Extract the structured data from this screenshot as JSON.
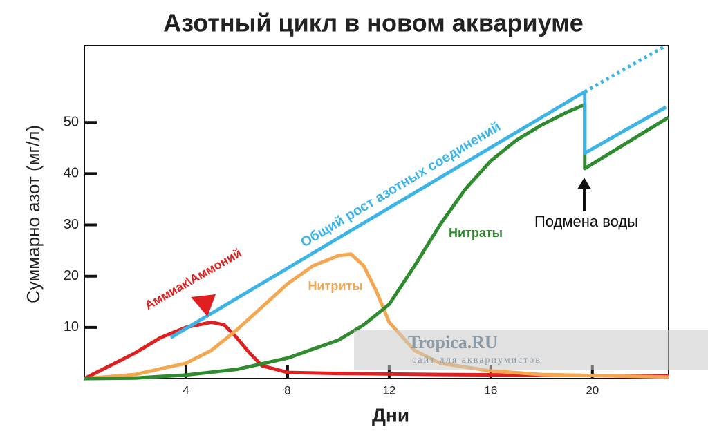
{
  "chart_data": {
    "type": "line",
    "title": "Азотный цикл в новом аквариуме",
    "xlabel": "Дни",
    "ylabel": "Суммарно азот (мг/л)",
    "xlim": [
      0,
      23
    ],
    "ylim": [
      0,
      65
    ],
    "xticks": [
      4,
      8,
      12,
      16,
      20
    ],
    "yticks": [
      10,
      20,
      30,
      40,
      50
    ],
    "series": [
      {
        "name": "Общий рост азотных соединений",
        "color": "#3cb4e8",
        "x": [
          3.4,
          19.7,
          19.7,
          22.9
        ],
        "values": [
          8,
          56,
          44,
          53
        ],
        "projection": {
          "x": [
            19.7,
            22.9
          ],
          "values": [
            56,
            65
          ]
        }
      },
      {
        "name": "Аммиак\\Аммоний",
        "color": "#e02020",
        "x": [
          0,
          1,
          2,
          3,
          4,
          5,
          5.5,
          6,
          6.5,
          7,
          8,
          10,
          14,
          23
        ],
        "values": [
          0,
          2.5,
          5,
          8,
          10,
          11,
          10.5,
          8,
          5,
          2.5,
          1.2,
          1,
          0.8,
          0.5
        ]
      },
      {
        "name": "Нитриты",
        "color": "#f5a650",
        "x": [
          0,
          2,
          4,
          5,
          6,
          7,
          8,
          9,
          10,
          10.5,
          11,
          11.5,
          12,
          13,
          14,
          16,
          18,
          23
        ],
        "values": [
          0,
          0.8,
          3,
          5.5,
          9.5,
          14,
          18.5,
          22,
          24,
          24.3,
          22,
          17,
          11,
          5.5,
          3,
          1.5,
          0.8,
          0.3
        ]
      },
      {
        "name": "Нитраты",
        "color": "#2e8b2e",
        "x": [
          0,
          2,
          4,
          6,
          8,
          10,
          11,
          12,
          13,
          14,
          15,
          16,
          17,
          18,
          19,
          19.7,
          19.7,
          23
        ],
        "values": [
          0,
          0.1,
          0.7,
          1.8,
          4,
          7.5,
          10.5,
          14.5,
          22,
          30,
          37,
          42.5,
          46.5,
          49.5,
          52,
          53.5,
          41,
          51
        ]
      }
    ],
    "annotation": "Подмена воды",
    "watermark": {
      "title": "Tropica.RU",
      "subtitle": "сайт для аквариумистов"
    }
  }
}
